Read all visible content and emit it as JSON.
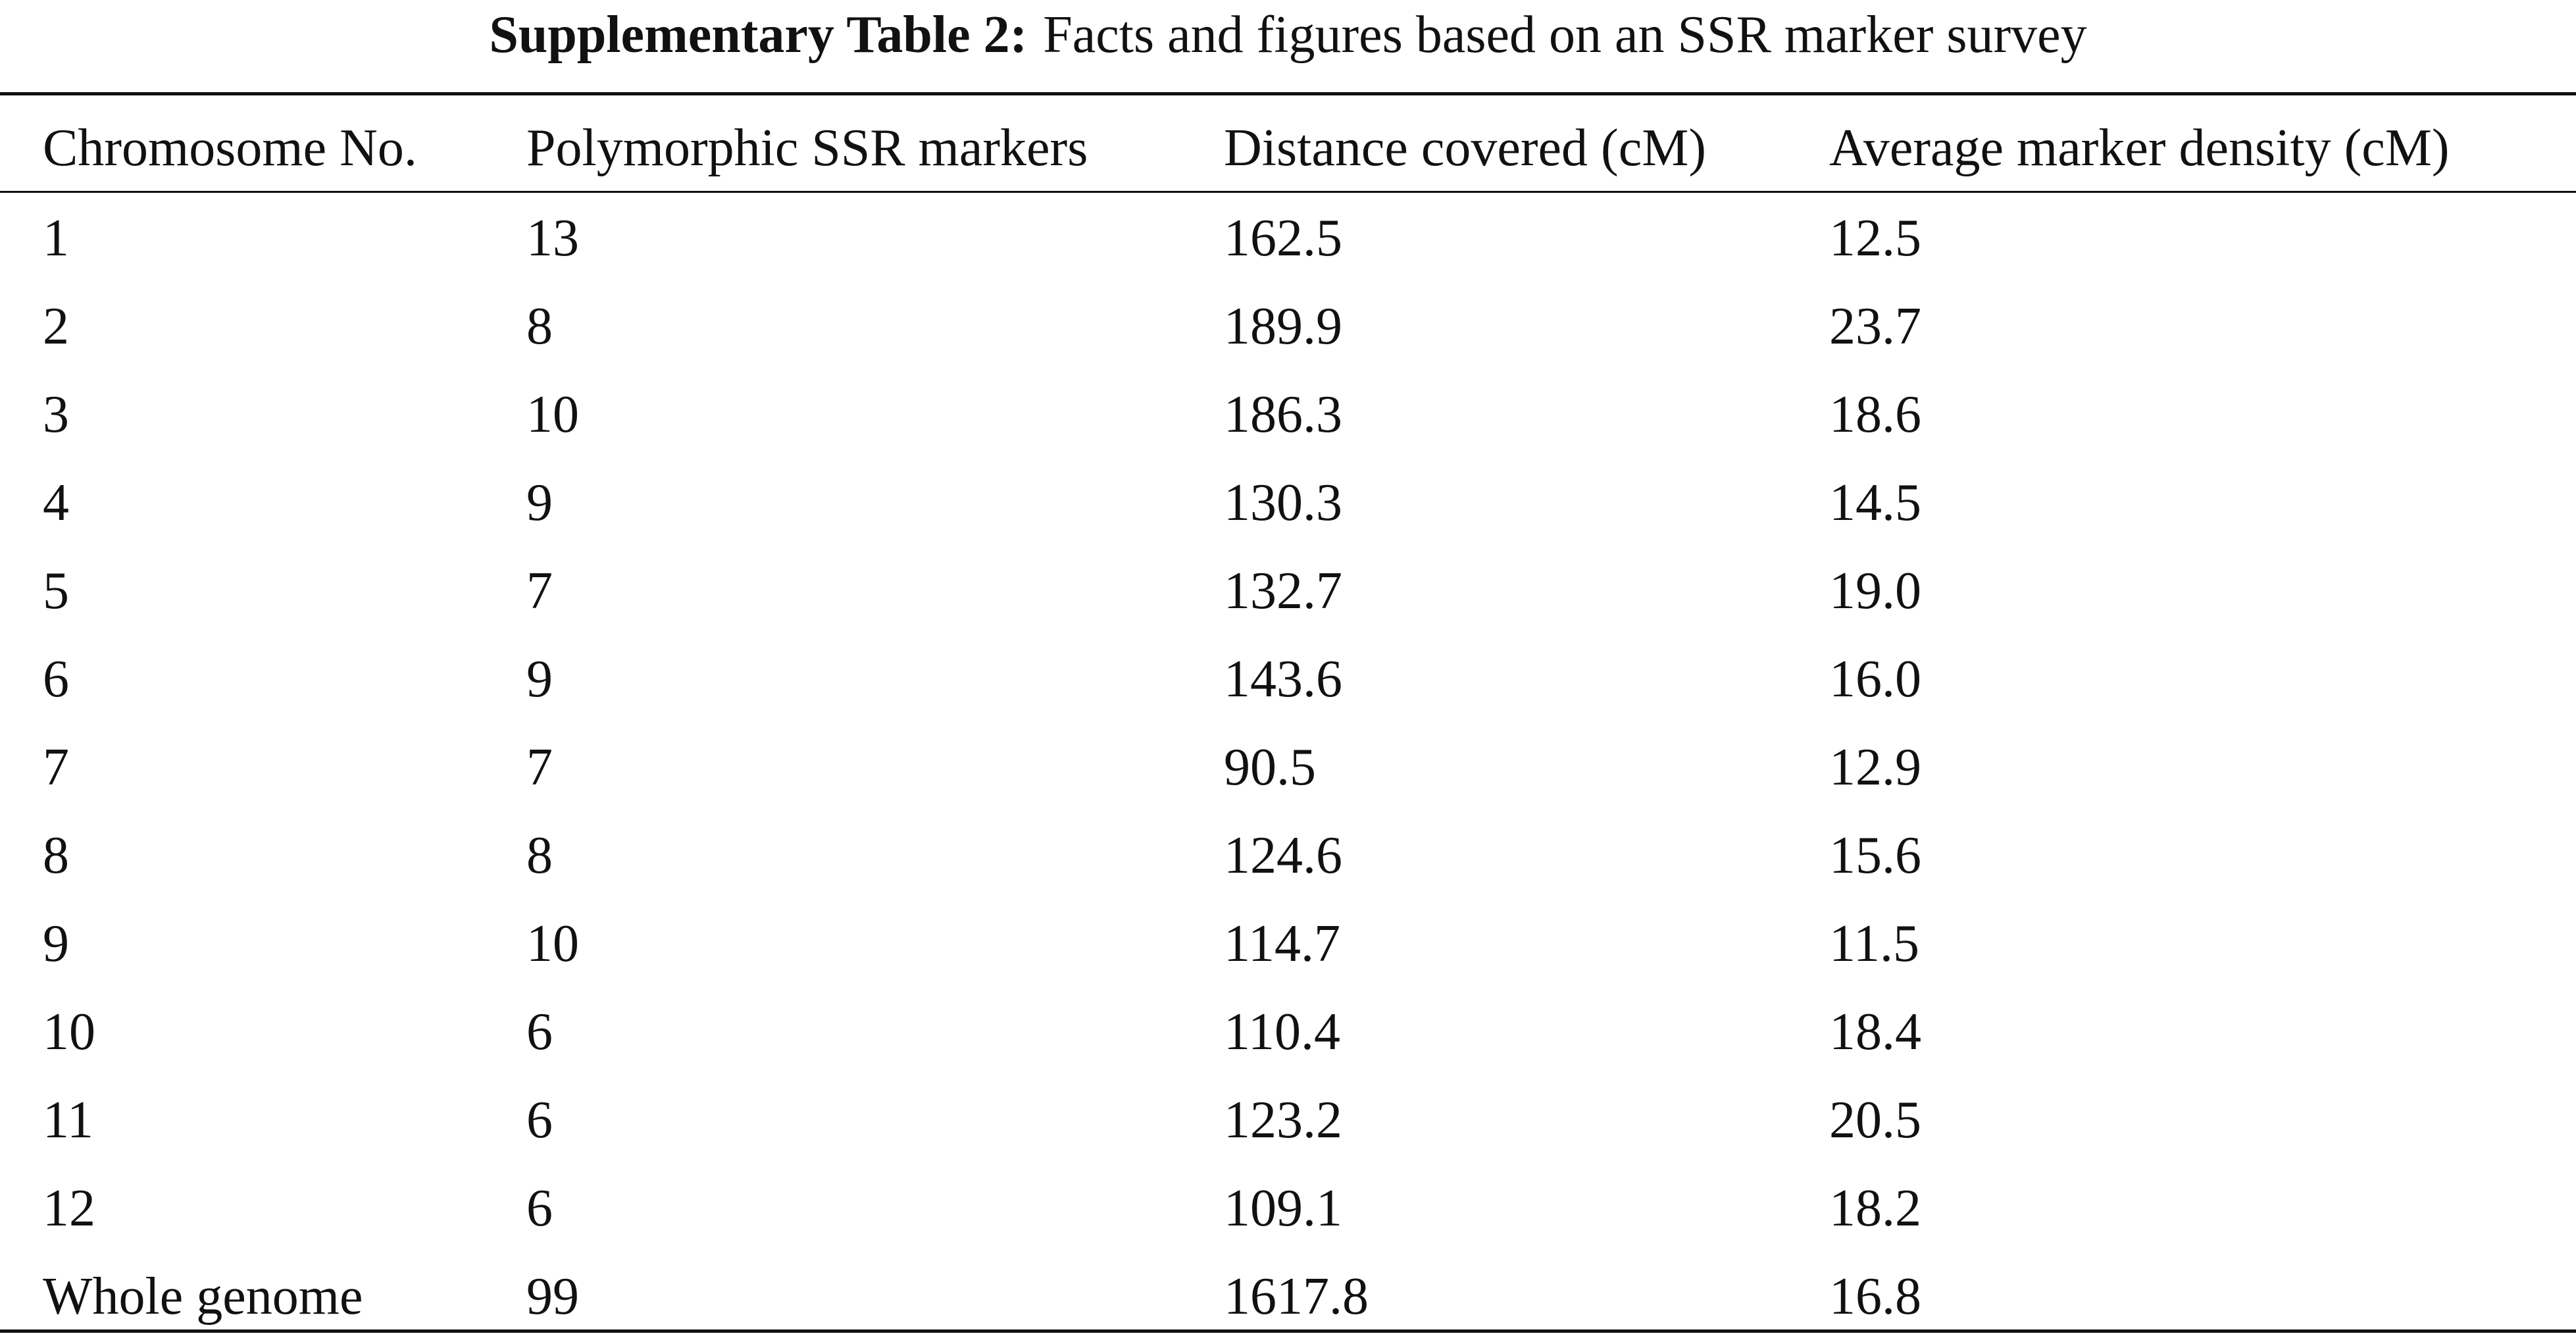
{
  "title": {
    "label": "Supplementary Table 2:",
    "text": "Facts and figures based on an SSR marker survey"
  },
  "table": {
    "header": [
      "Chromosome No.",
      "Polymorphic SSR markers",
      "Distance covered (cM)",
      "Average marker density (cM)"
    ],
    "rows": [
      [
        "1",
        "13",
        "162.5",
        "12.5"
      ],
      [
        "2",
        "8",
        "189.9",
        "23.7"
      ],
      [
        "3",
        "10",
        "186.3",
        "18.6"
      ],
      [
        "4",
        "9",
        "130.3",
        "14.5"
      ],
      [
        "5",
        "7",
        "132.7",
        "19.0"
      ],
      [
        "6",
        "9",
        "143.6",
        "16.0"
      ],
      [
        "7",
        "7",
        "90.5",
        "12.9"
      ],
      [
        "8",
        "8",
        "124.6",
        "15.6"
      ],
      [
        "9",
        "10",
        "114.7",
        "11.5"
      ],
      [
        "10",
        "6",
        "110.4",
        "18.4"
      ],
      [
        "11",
        "6",
        "123.2",
        "20.5"
      ],
      [
        "12",
        "6",
        "109.1",
        "18.2"
      ],
      [
        "Whole genome",
        "99",
        "1617.8",
        "16.8"
      ]
    ]
  }
}
